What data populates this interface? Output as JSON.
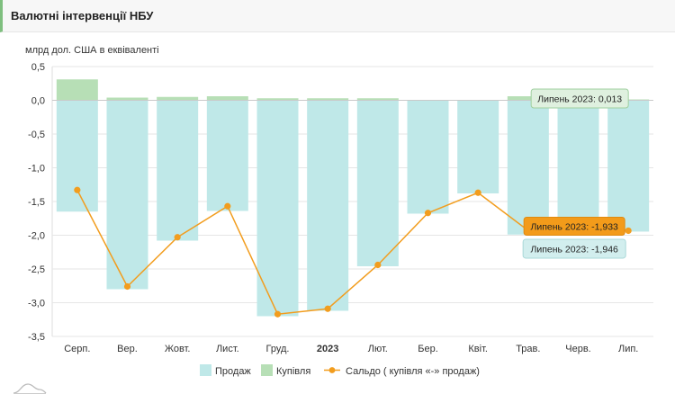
{
  "header": {
    "title": "Валютні інтервенції НБУ"
  },
  "chart_data": {
    "type": "bar",
    "ylabel": "млрд дол. США в еквіваленті",
    "ylim": [
      -3.5,
      0.5
    ],
    "yticks": [
      "0,5",
      "0,0",
      "-0,5",
      "-1,0",
      "-1,5",
      "-2,0",
      "-2,5",
      "-3,0",
      "-3,5"
    ],
    "ytick_values": [
      0.5,
      0,
      -0.5,
      -1.0,
      -1.5,
      -2.0,
      -2.5,
      -3.0,
      -3.5
    ],
    "categories": [
      "Серп.",
      "Вер.",
      "Жовт.",
      "Лист.",
      "Груд.",
      "2023",
      "Лют.",
      "Бер.",
      "Квіт.",
      "Трав.",
      "Черв.",
      "Лип."
    ],
    "series": [
      {
        "name": "Продаж",
        "kind": "bar",
        "color": "#bfe8e8",
        "values": [
          -1.65,
          -2.8,
          -2.08,
          -1.64,
          -3.2,
          -3.12,
          -2.46,
          -1.68,
          -1.38,
          -1.99,
          -1.98,
          -1.946
        ]
      },
      {
        "name": "Купівля",
        "kind": "bar",
        "color": "#b7dfb6",
        "values": [
          0.31,
          0.04,
          0.05,
          0.06,
          0.03,
          0.03,
          0.03,
          0.0,
          0.0,
          0.06,
          0.03,
          0.013
        ]
      },
      {
        "name": "Сальдо ( купівля «-» продаж)",
        "kind": "line",
        "color": "#f29d1e",
        "values": [
          -1.33,
          -2.76,
          -2.03,
          -1.57,
          -3.17,
          -3.09,
          -2.44,
          -1.67,
          -1.37,
          -1.93,
          -1.79,
          -1.933
        ]
      }
    ],
    "tooltips": [
      {
        "text": "Липень 2023: 0,013",
        "series": "Купівля"
      },
      {
        "text": "Липень 2023: -1,933",
        "series": "Сальдо ( купівля «-» продаж)"
      },
      {
        "text": "Липень 2023: -1,946",
        "series": "Продаж"
      }
    ],
    "legend_position": "bottom-center",
    "grid": true
  }
}
